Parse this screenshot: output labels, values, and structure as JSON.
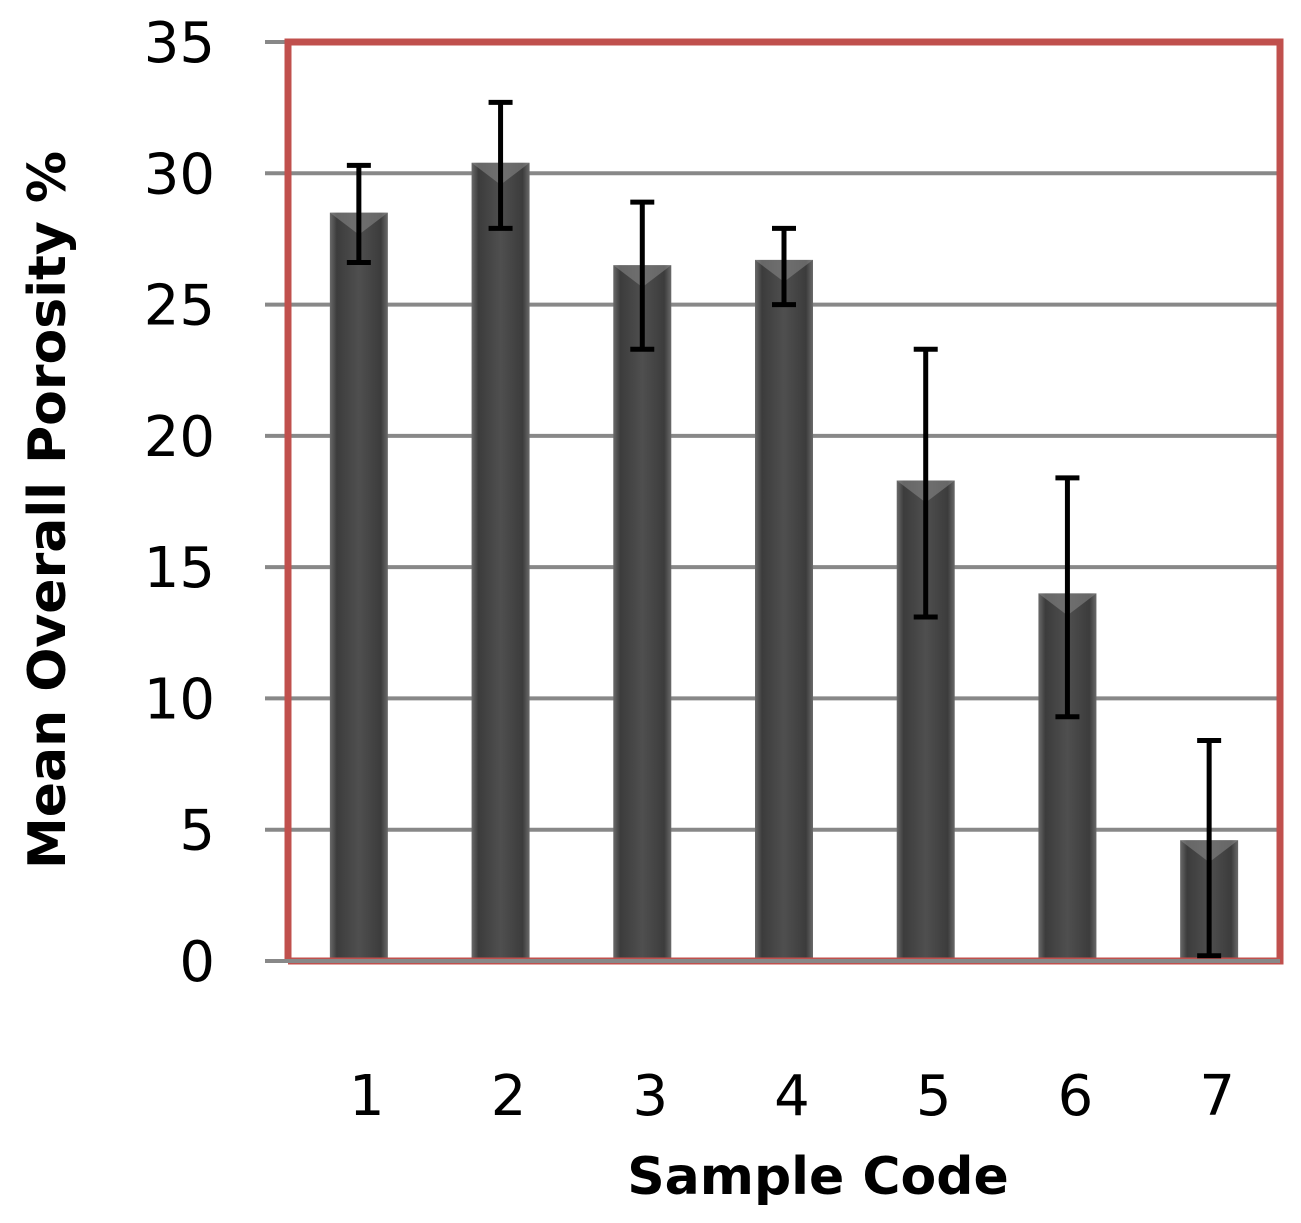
{
  "chart_data": {
    "type": "bar",
    "title": "",
    "xlabel": "Sample Code",
    "ylabel": "Mean Overall Porosity %",
    "categories": [
      "1",
      "2",
      "3",
      "4",
      "5",
      "6",
      "7"
    ],
    "series": [
      {
        "values": [
          28.5,
          30.4,
          26.5,
          26.7,
          18.3,
          14.0,
          4.6
        ],
        "error_low": [
          26.6,
          27.9,
          23.3,
          25.0,
          13.1,
          9.3,
          0.2
        ],
        "error_high": [
          30.3,
          32.7,
          28.9,
          27.9,
          23.3,
          18.4,
          8.4
        ]
      }
    ],
    "ylim": [
      0,
      35
    ],
    "yticks": [
      "0",
      "5",
      "10",
      "15",
      "20",
      "25",
      "30",
      "35"
    ],
    "grid": true,
    "legend": "none",
    "colors": {
      "bar": "#4d4d4d",
      "plot_border": "#c0504d",
      "gridline": "#888888",
      "error_bar": "#000000"
    }
  }
}
